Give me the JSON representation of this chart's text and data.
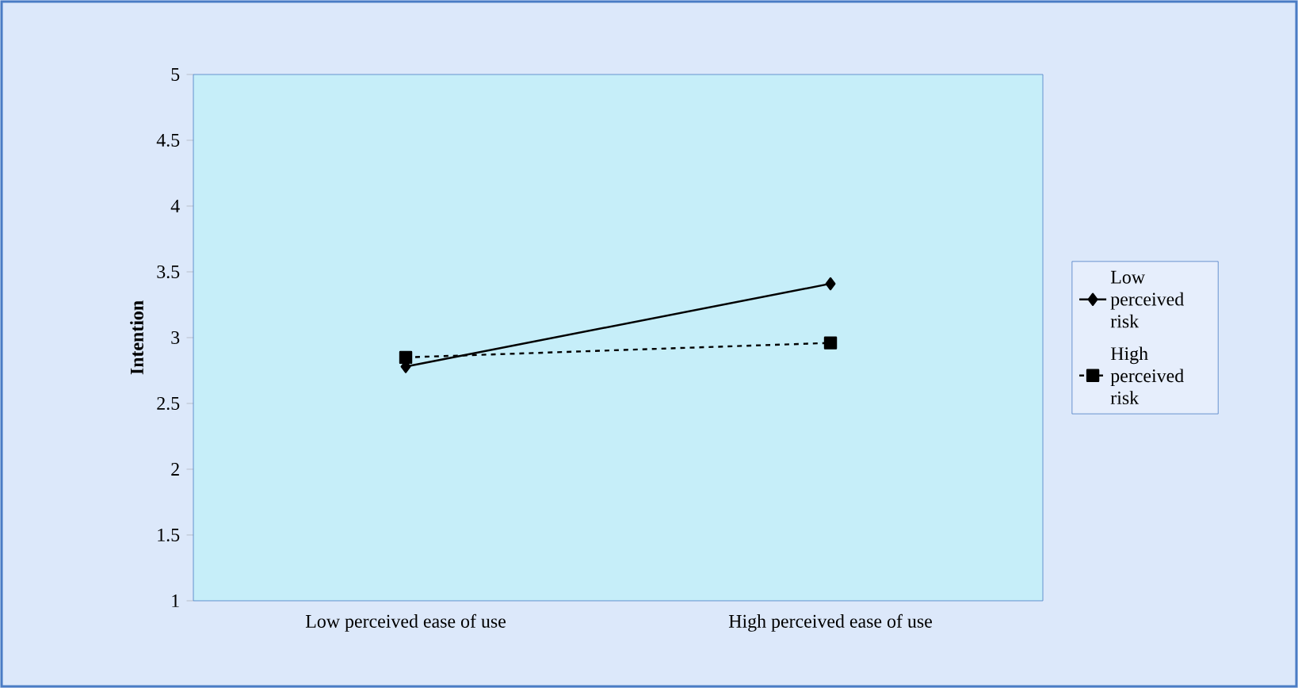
{
  "chart_data": {
    "type": "line",
    "ylabel": "Intention",
    "categories": [
      "Low perceived ease of use",
      "High perceived ease of use"
    ],
    "series": [
      {
        "name": "Low perceived risk",
        "color": "#000000",
        "values": [
          2.78,
          3.41
        ],
        "marker": "diamond",
        "line_style": "solid"
      },
      {
        "name": "High perceived risk",
        "color": "#000000",
        "values": [
          2.85,
          2.96
        ],
        "marker": "square",
        "line_style": "dashed"
      }
    ],
    "ylim": [
      1,
      5
    ],
    "yticks": [
      1,
      1.5,
      2,
      2.5,
      3,
      3.5,
      4,
      4.5,
      5
    ],
    "grid": false,
    "legend": "right"
  }
}
